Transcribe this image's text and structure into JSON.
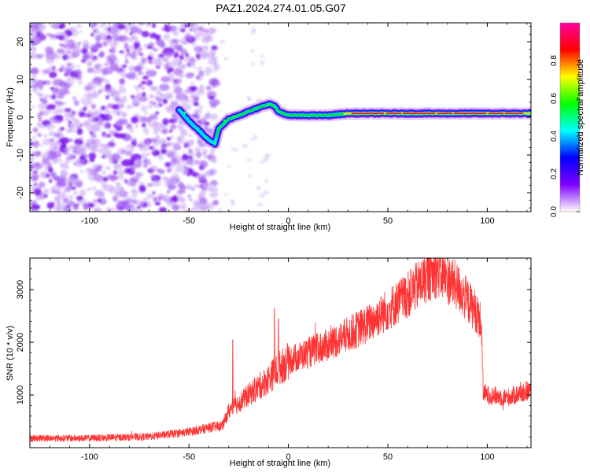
{
  "title": "PAZ1.2024.274.01.05.G07",
  "chart_data": [
    {
      "type": "heatmap",
      "xlabel": "Height of straight line (km)",
      "ylabel": "Frequency (Hz)",
      "xlim": [
        -130,
        122
      ],
      "ylim": [
        -25,
        25
      ],
      "x_ticks": [
        -100,
        -50,
        0,
        50,
        100
      ],
      "y_ticks": [
        -20,
        -10,
        0,
        10,
        20
      ],
      "colorbar": {
        "label": "Normalized spectral amplitude",
        "range": [
          0,
          1
        ],
        "ticks": [
          0.0,
          0.2,
          0.4,
          0.6,
          0.8
        ],
        "colormap": [
          "#ffffff",
          "#8000ff",
          "#0000ff",
          "#00ffff",
          "#00ff00",
          "#ffff00",
          "#ff0000",
          "#ff00a0"
        ]
      },
      "ridge": {
        "x": [
          -55,
          -50,
          -45,
          -40,
          -37,
          -35,
          -30,
          -25,
          -20,
          -15,
          -10,
          -7,
          -5,
          0,
          10,
          20,
          30,
          50,
          70,
          90,
          100,
          110,
          122
        ],
        "frequency": [
          2,
          -1,
          -3.5,
          -6,
          -7,
          -3,
          -0.5,
          0.5,
          1.5,
          2.5,
          3.5,
          3,
          1.5,
          0.5,
          0.5,
          0.5,
          1,
          1,
          1,
          1,
          1,
          1,
          1
        ]
      },
      "noise_region_x": [
        -130,
        -40
      ]
    },
    {
      "type": "line",
      "xlabel": "Height of straight line (km)",
      "ylabel": "SNR (10 * v/v)",
      "xlim": [
        -130,
        122
      ],
      "ylim": [
        0,
        3600
      ],
      "x_ticks": [
        -100,
        -50,
        0,
        50,
        100
      ],
      "y_ticks": [
        1000,
        2000,
        3000
      ],
      "series_color": "#ff3333",
      "trend": {
        "x": [
          -130,
          -100,
          -70,
          -50,
          -40,
          -33,
          -30,
          -20,
          -10,
          -5,
          0,
          20,
          40,
          60,
          70,
          75,
          85,
          95,
          97,
          98,
          100,
          110,
          122
        ],
        "y": [
          180,
          180,
          210,
          300,
          380,
          420,
          700,
          1000,
          1300,
          1500,
          1650,
          1950,
          2350,
          2900,
          3250,
          3350,
          3050,
          2550,
          2350,
          1050,
          1000,
          950,
          1100
        ]
      },
      "spikes": [
        {
          "x": -28,
          "y": 2050
        },
        {
          "x": -7,
          "y": 2650
        },
        {
          "x": -5,
          "y": 2450
        }
      ]
    }
  ]
}
